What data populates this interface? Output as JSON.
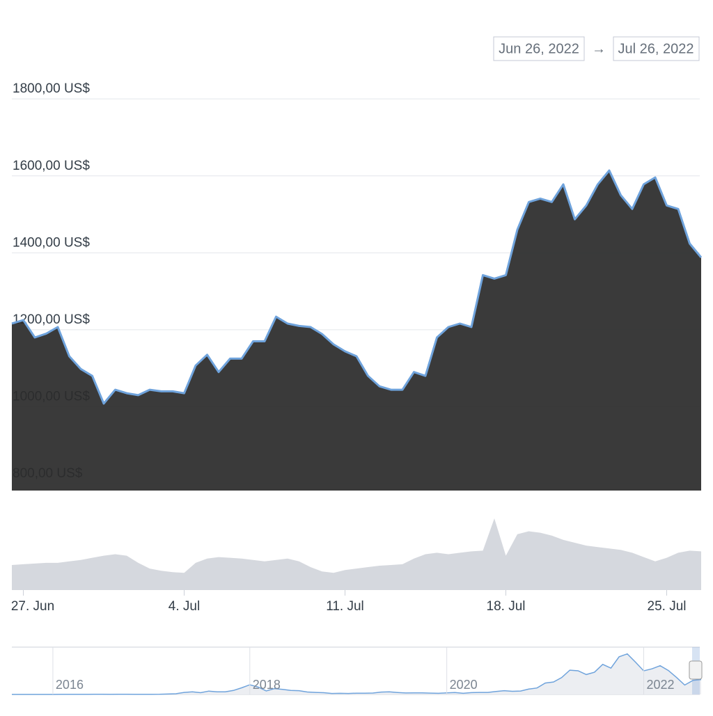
{
  "range": {
    "from": "Jun 26, 2022",
    "separator": "→",
    "to": "Jul 26, 2022"
  },
  "chart_data": [
    {
      "type": "area",
      "categories": [
        null,
        "27. Jun",
        null,
        null,
        null,
        null,
        null,
        null,
        null,
        null,
        null,
        null,
        null,
        null,
        null,
        "4. Jul",
        null,
        null,
        null,
        null,
        null,
        null,
        null,
        null,
        null,
        null,
        null,
        null,
        null,
        "11. Jul",
        null,
        null,
        null,
        null,
        null,
        null,
        null,
        null,
        null,
        null,
        null,
        null,
        null,
        "18. Jul",
        null,
        null,
        null,
        null,
        null,
        null,
        null,
        null,
        null,
        null,
        null,
        null,
        null,
        "25. Jul",
        null,
        null,
        null
      ],
      "values": [
        1216,
        1225,
        1180,
        1190,
        1207,
        1131,
        1098,
        1080,
        1008,
        1044,
        1035,
        1030,
        1044,
        1040,
        1040,
        1035,
        1107,
        1135,
        1090,
        1125,
        1125,
        1170,
        1170,
        1234,
        1216,
        1210,
        1207,
        1189,
        1162,
        1144,
        1131,
        1080,
        1053,
        1044,
        1044,
        1090,
        1080,
        1180,
        1207,
        1216,
        1207,
        1342,
        1333,
        1342,
        1460,
        1532,
        1541,
        1532,
        1578,
        1487,
        1523,
        1578,
        1614,
        1550,
        1514,
        1578,
        1596,
        1523,
        1514,
        1424,
        1388
      ],
      "color": "#2b2b2b",
      "line_color": "#6fa3dc",
      "ylim": [
        782,
        1822
      ],
      "yticks": [
        {
          "value": 800,
          "label": "800,00 US$"
        },
        {
          "value": 1000,
          "label": "1000,00 US$"
        },
        {
          "value": 1200,
          "label": "1200,00 US$"
        },
        {
          "value": 1400,
          "label": "1400,00 US$"
        },
        {
          "value": 1600,
          "label": "1600,00 US$"
        },
        {
          "value": 1800,
          "label": "1800,00 US$"
        }
      ],
      "grid": true
    },
    {
      "type": "area",
      "values": [
        35,
        36,
        37,
        38,
        38,
        40,
        42,
        45,
        48,
        50,
        48,
        38,
        30,
        27,
        25,
        24,
        38,
        44,
        46,
        45,
        44,
        42,
        40,
        42,
        44,
        40,
        32,
        26,
        24,
        28,
        30,
        32,
        34,
        35,
        36,
        44,
        50,
        52,
        50,
        52,
        54,
        55,
        100,
        48,
        78,
        82,
        80,
        76,
        70,
        66,
        62,
        60,
        58,
        56,
        52,
        46,
        40,
        45,
        52,
        55,
        54
      ],
      "color": "#d5d8de",
      "ylim": [
        0,
        100
      ]
    },
    {
      "type": "line",
      "categories": [
        null,
        null,
        null,
        null,
        null,
        "2016",
        null,
        null,
        null,
        null,
        null,
        null,
        null,
        null,
        null,
        null,
        null,
        null,
        null,
        null,
        null,
        null,
        null,
        null,
        null,
        null,
        null,
        null,
        null,
        "2018",
        null,
        null,
        null,
        null,
        null,
        null,
        null,
        null,
        null,
        null,
        null,
        null,
        null,
        null,
        null,
        null,
        null,
        null,
        null,
        null,
        null,
        null,
        null,
        "2020",
        null,
        null,
        null,
        null,
        null,
        null,
        null,
        null,
        null,
        null,
        null,
        null,
        null,
        null,
        null,
        null,
        null,
        null,
        null,
        null,
        null,
        null,
        null,
        "2022",
        null,
        null,
        null,
        null,
        null,
        null,
        null
      ],
      "values": [
        1,
        1,
        1,
        1,
        1,
        1,
        6,
        11,
        9,
        10,
        14,
        12,
        11,
        13,
        12,
        10,
        8,
        10,
        13,
        50,
        80,
        230,
        300,
        200,
        380,
        300,
        300,
        450,
        750,
        1100,
        850,
        400,
        670,
        580,
        450,
        430,
        280,
        230,
        200,
        110,
        130,
        110,
        140,
        140,
        160,
        270,
        290,
        220,
        170,
        180,
        180,
        150,
        130,
        180,
        220,
        130,
        210,
        230,
        230,
        340,
        430,
        360,
        390,
        610,
        740,
        1300,
        1420,
        1920,
        2770,
        2700,
        2270,
        2530,
        3430,
        3000,
        4290,
        4630,
        3680,
        2690,
        2920,
        3280,
        2730,
        1940,
        1070,
        1600,
        1700
      ],
      "color": "#6fa3dc",
      "ylim": [
        0,
        5000
      ]
    }
  ]
}
